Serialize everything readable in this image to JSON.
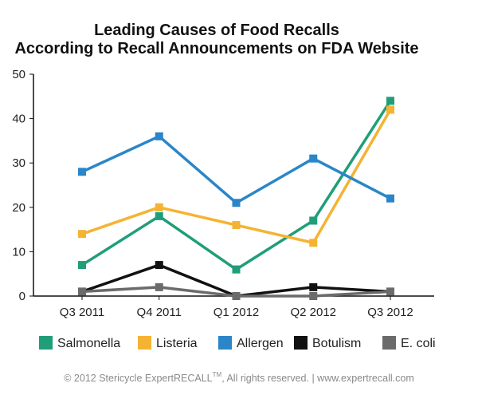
{
  "chart_data": {
    "type": "line",
    "title_line1": "Leading Causes of Food Recalls",
    "title_line2": "According to Recall Announcements on FDA Website",
    "categories": [
      "Q3 2011",
      "Q4 2011",
      "Q1 2012",
      "Q2 2012",
      "Q3 2012"
    ],
    "ylim": [
      0,
      50
    ],
    "yticks": [
      "0",
      "10",
      "20",
      "30",
      "40",
      "50"
    ],
    "grid": false,
    "legend_position": "bottom",
    "series": [
      {
        "name": "Salmonella",
        "color": "#1f9e79",
        "values": [
          7,
          18,
          6,
          17,
          44
        ]
      },
      {
        "name": "Listeria",
        "color": "#f5b333",
        "values": [
          14,
          20,
          16,
          12,
          42
        ]
      },
      {
        "name": "Allergen",
        "color": "#2a86c8",
        "values": [
          28,
          36,
          21,
          31,
          22
        ]
      },
      {
        "name": "Botulism",
        "color": "#111111",
        "values": [
          1,
          7,
          0,
          2,
          1
        ]
      },
      {
        "name": "E. coli",
        "color": "#6b6b6b",
        "values": [
          1,
          2,
          0,
          0,
          1
        ]
      }
    ]
  },
  "footer": {
    "text_prefix": "© 2012 Stericycle ExpertRECALL",
    "trademark": "TM",
    "text_suffix": ", All rights reserved.  |  www.expertrecall.com"
  }
}
